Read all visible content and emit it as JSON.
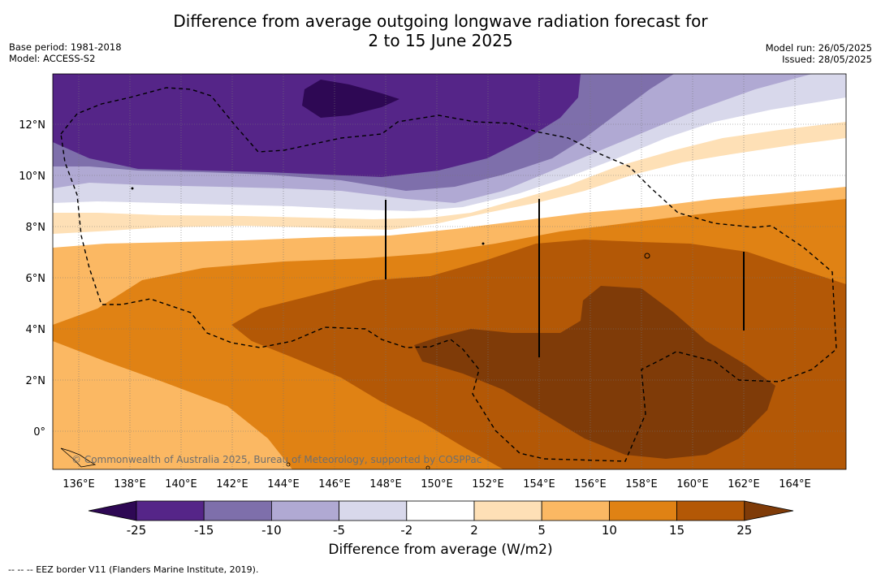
{
  "header": {
    "title_line1": "Difference from average outgoing longwave radiation forecast for",
    "title_line2": "2 to 15 June 2025",
    "base_period": "Base period: 1981-2018",
    "model": "Model: ACCESS-S2",
    "model_run": "Model run: 26/05/2025",
    "issued": "Issued: 28/05/2025"
  },
  "map": {
    "lon_ticks": [
      "136°E",
      "138°E",
      "140°E",
      "142°E",
      "144°E",
      "146°E",
      "148°E",
      "150°E",
      "152°E",
      "154°E",
      "156°E",
      "158°E",
      "160°E",
      "162°E",
      "164°E"
    ],
    "lat_ticks": [
      "12°N",
      "10°N",
      "8°N",
      "6°N",
      "4°N",
      "2°N",
      "0°"
    ],
    "copyright": "© Commonwealth of Australia 2025, Bureau of Meteorology, supported by COSPPac",
    "grid": true
  },
  "colorbar": {
    "labels": [
      "-25",
      "-15",
      "-10",
      "-5",
      "-2",
      "2",
      "5",
      "10",
      "15",
      "25"
    ],
    "colors": [
      "#2e0854",
      "#552588",
      "#7e6fab",
      "#b0a9d3",
      "#d8d8eb",
      "#ffffff",
      "#fee0b6",
      "#fbb863",
      "#e08214",
      "#b35806",
      "#7f3b08"
    ],
    "title": "Difference from average (W/m2)"
  },
  "footnote": "--  --  -- EEZ border V11 (Flanders Marine Institute, 2019)."
}
